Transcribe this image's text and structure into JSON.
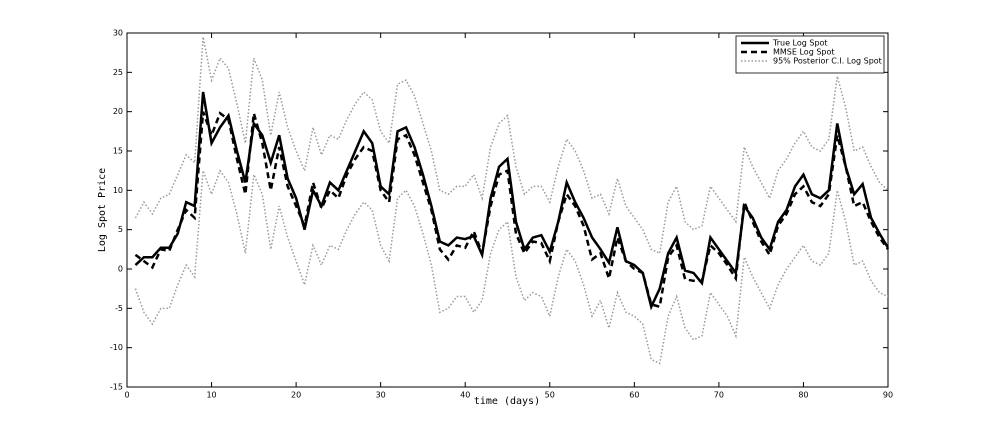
{
  "chart_data": {
    "type": "line",
    "xlabel": "time (days)",
    "ylabel": "Log Spot Price",
    "xlim": [
      0,
      90
    ],
    "xticks": [
      0,
      10,
      20,
      30,
      40,
      50,
      60,
      70,
      80,
      90
    ],
    "ylim": [
      -15,
      30
    ],
    "yticks": [
      -15,
      -10,
      -5,
      0,
      5,
      10,
      15,
      20,
      25,
      30
    ],
    "legend": "top-right",
    "x": [
      1,
      2,
      3,
      4,
      5,
      6,
      7,
      8,
      9,
      10,
      11,
      12,
      13,
      14,
      15,
      16,
      17,
      18,
      19,
      20,
      21,
      22,
      23,
      24,
      25,
      26,
      27,
      28,
      29,
      30,
      31,
      32,
      33,
      34,
      35,
      36,
      37,
      38,
      39,
      40,
      41,
      42,
      43,
      44,
      45,
      46,
      47,
      48,
      49,
      50,
      51,
      52,
      53,
      54,
      55,
      56,
      57,
      58,
      59,
      60,
      61,
      62,
      63,
      64,
      65,
      66,
      67,
      68,
      69,
      70,
      71,
      72,
      73,
      74,
      75,
      76,
      77,
      78,
      79,
      80,
      81,
      82,
      83,
      84,
      85,
      86,
      87,
      88,
      89,
      90
    ],
    "series": [
      {
        "name": "True Log Spot",
        "color": "#000000",
        "style": "solid",
        "values": [
          0.5,
          1.5,
          1.5,
          2.7,
          2.7,
          4.5,
          8.5,
          8,
          22.5,
          16,
          18,
          19.5,
          15,
          11,
          18.5,
          17,
          13.5,
          17,
          11.5,
          9,
          5,
          10,
          8,
          11,
          10,
          12.5,
          15,
          17.5,
          16,
          10.5,
          9.5,
          17.5,
          18,
          15.5,
          12,
          8,
          3.5,
          3,
          4,
          3.8,
          4.2,
          1.8,
          9,
          13,
          14,
          6,
          2.5,
          4,
          4.3,
          2.2,
          6,
          11,
          8.5,
          6.5,
          4,
          2.5,
          0.8,
          5.3,
          1,
          0.5,
          -0.5,
          -4.8,
          -2.5,
          2,
          4,
          -0.2,
          -0.5,
          -1.8,
          4,
          2.5,
          1,
          -0.5,
          8,
          6.5,
          4,
          2.5,
          6,
          7.5,
          10.5,
          12,
          9.5,
          9,
          10,
          18.5,
          13,
          9.5,
          10.8,
          6.5,
          4.5,
          2.7
        ]
      },
      {
        "name": "MMSE Log Spot",
        "color": "#000000",
        "style": "dashed",
        "values": [
          1.8,
          1,
          0.2,
          2.5,
          2.3,
          5,
          7.5,
          6.5,
          20,
          17,
          19.8,
          19,
          14,
          9.5,
          19.8,
          16,
          10,
          15.5,
          10.5,
          8,
          5.5,
          11,
          7.7,
          10,
          9,
          12,
          14,
          15.5,
          15,
          10,
          8.5,
          16.5,
          17,
          14.5,
          11,
          7.5,
          2.5,
          1.2,
          3,
          2.7,
          4.8,
          2,
          8,
          12,
          12.5,
          4.5,
          2,
          3.5,
          3.3,
          1,
          6,
          9.5,
          8,
          5.5,
          1.2,
          2,
          -1.2,
          4,
          1,
          0,
          -0.5,
          -4.5,
          -4.8,
          1.5,
          3,
          -1.3,
          -1.5,
          -1.5,
          3,
          2,
          0.5,
          -1.2,
          8.5,
          6,
          3.5,
          1.8,
          5.5,
          7,
          9.5,
          10.5,
          8.5,
          8,
          9.5,
          17,
          13,
          8,
          8.5,
          6,
          4,
          2.5
        ]
      },
      {
        "name": "95% Posterior C.I. Log Spot",
        "color": "#999999",
        "style": "dotted",
        "upper": [
          6.5,
          8.5,
          7,
          9,
          9.5,
          12,
          14.5,
          13.5,
          29.5,
          24,
          26.8,
          25.5,
          21,
          16,
          26.8,
          24,
          17,
          22.5,
          18,
          15,
          12.5,
          18,
          14.5,
          17,
          16.5,
          19,
          21,
          22.5,
          21.5,
          17.5,
          16,
          23.5,
          24,
          22,
          18.5,
          15,
          10,
          9.5,
          10.5,
          10.5,
          12,
          9,
          15.5,
          18.5,
          19.5,
          13,
          9.5,
          10.5,
          10.5,
          8.5,
          13,
          16.5,
          15,
          12.5,
          9,
          9.5,
          7,
          11.5,
          8,
          6.5,
          5,
          2.5,
          2,
          8.5,
          10.5,
          6,
          5,
          5.5,
          10.5,
          9,
          7.5,
          6,
          15.5,
          13,
          11,
          9,
          12.5,
          14,
          16,
          17.5,
          15.5,
          15,
          16.5,
          24.5,
          20.5,
          15,
          15.5,
          13,
          11,
          10
        ],
        "lower": [
          -2.5,
          -5.5,
          -7,
          -5,
          -5,
          -2,
          0.5,
          -1,
          12.5,
          9.5,
          12.5,
          11,
          7,
          2,
          12,
          9.5,
          2.5,
          8,
          4,
          1,
          -2,
          3,
          0.5,
          3,
          2.5,
          5,
          7,
          8.5,
          7.5,
          3,
          1,
          9,
          10,
          8,
          4.5,
          0.5,
          -5.5,
          -5,
          -3.5,
          -3.5,
          -5.5,
          -4,
          2,
          5,
          6,
          -1,
          -4,
          -3,
          -3.5,
          -6,
          -1,
          2.5,
          1,
          -2,
          -6,
          -4,
          -7.5,
          -3,
          -5.5,
          -6,
          -7,
          -11.5,
          -12,
          -6,
          -3.5,
          -7.5,
          -9,
          -8.5,
          -3,
          -4.5,
          -6,
          -8.5,
          1.5,
          -1,
          -3,
          -5,
          -2,
          0,
          1.5,
          3,
          1,
          0.5,
          2,
          10,
          6,
          0.5,
          1,
          -1.5,
          -3,
          -3.5
        ]
      }
    ]
  }
}
